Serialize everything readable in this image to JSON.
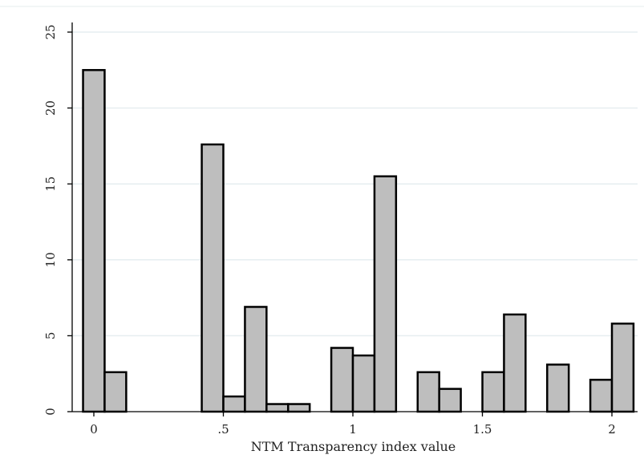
{
  "chart_data": {
    "type": "bar",
    "title": "",
    "xlabel": "NTM Transparency index value",
    "ylabel": "",
    "xlim": [
      -0.0417,
      2.0833
    ],
    "ylim": [
      0,
      25
    ],
    "bin_width": 0.0833,
    "x_ticks": [
      {
        "value": 0,
        "label": "0"
      },
      {
        "value": 0.5,
        "label": ".5"
      },
      {
        "value": 1,
        "label": "1"
      },
      {
        "value": 1.5,
        "label": "1.5"
      },
      {
        "value": 2,
        "label": "2"
      }
    ],
    "y_ticks": [
      {
        "value": 0,
        "label": "0"
      },
      {
        "value": 5,
        "label": "5"
      },
      {
        "value": 10,
        "label": "10"
      },
      {
        "value": 15,
        "label": "15"
      },
      {
        "value": 20,
        "label": "20"
      },
      {
        "value": 25,
        "label": "25"
      }
    ],
    "bars": [
      {
        "x": 0.0,
        "value": 22.5
      },
      {
        "x": 0.0833,
        "value": 2.6
      },
      {
        "x": 0.4583,
        "value": 17.6
      },
      {
        "x": 0.5417,
        "value": 1.0
      },
      {
        "x": 0.625,
        "value": 6.9
      },
      {
        "x": 0.7083,
        "value": 0.5
      },
      {
        "x": 0.7917,
        "value": 0.5
      },
      {
        "x": 0.9583,
        "value": 4.2
      },
      {
        "x": 1.0417,
        "value": 3.7
      },
      {
        "x": 1.125,
        "value": 15.5
      },
      {
        "x": 1.2917,
        "value": 2.6
      },
      {
        "x": 1.375,
        "value": 1.5
      },
      {
        "x": 1.5417,
        "value": 2.6
      },
      {
        "x": 1.625,
        "value": 6.4
      },
      {
        "x": 1.7917,
        "value": 3.1
      },
      {
        "x": 1.9583,
        "value": 2.1
      },
      {
        "x": 2.0417,
        "value": 5.8
      }
    ],
    "grid": true,
    "colors": {
      "bar_fill": "#bebebe",
      "bar_stroke": "#000000",
      "grid": "#e6eef0",
      "axis": "#000000"
    }
  }
}
